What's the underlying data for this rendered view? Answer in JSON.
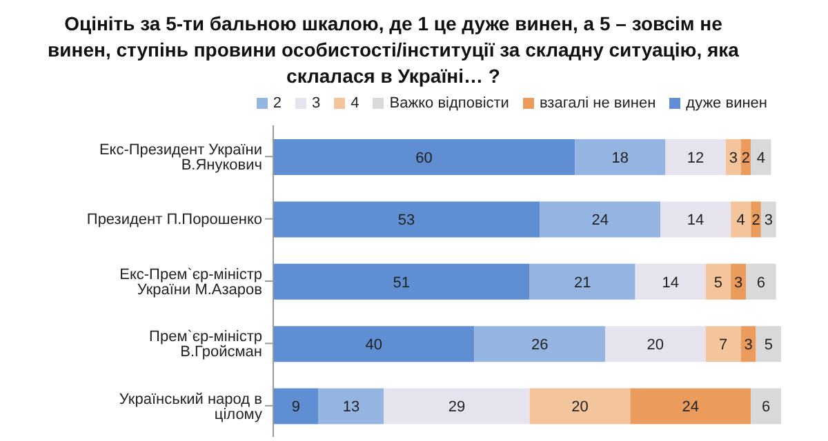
{
  "chart_data": {
    "type": "bar",
    "orientation": "horizontal",
    "stacked": true,
    "data_labels": true,
    "legend": "top right",
    "grid": false,
    "title": "Оцініть за 5-ти бальною шкалою, де 1 це дуже винен, а 5 – зовсім не винен, ступінь провини особистості/інституції за складну ситуацію, яка склалася в Україні… ?",
    "categories": [
      "Екс-Президент України В.Янукович",
      "Президент П.Порошенко",
      "Екс-Прем`єр-міністр України М.Азаров",
      "Прем`єр-міністр В.Гройсман",
      "Український народ в цілому"
    ],
    "series": [
      {
        "name": "дуже винен",
        "color": "#5f8fd2",
        "values": [
          60,
          53,
          51,
          40,
          9
        ]
      },
      {
        "name": "2",
        "color": "#94b4e1",
        "values": [
          18,
          24,
          21,
          26,
          13
        ]
      },
      {
        "name": "3",
        "color": "#e6e3ee",
        "values": [
          12,
          14,
          14,
          20,
          29
        ]
      },
      {
        "name": "4",
        "color": "#f4c59c",
        "values": [
          3,
          4,
          5,
          7,
          20
        ]
      },
      {
        "name": "взагалі не винен",
        "color": "#eb9b5b",
        "values": [
          2,
          2,
          3,
          3,
          24
        ]
      },
      {
        "name": "Важко відповісти",
        "color": "#d9d9d9",
        "values": [
          4,
          3,
          6,
          5,
          6
        ]
      }
    ]
  }
}
